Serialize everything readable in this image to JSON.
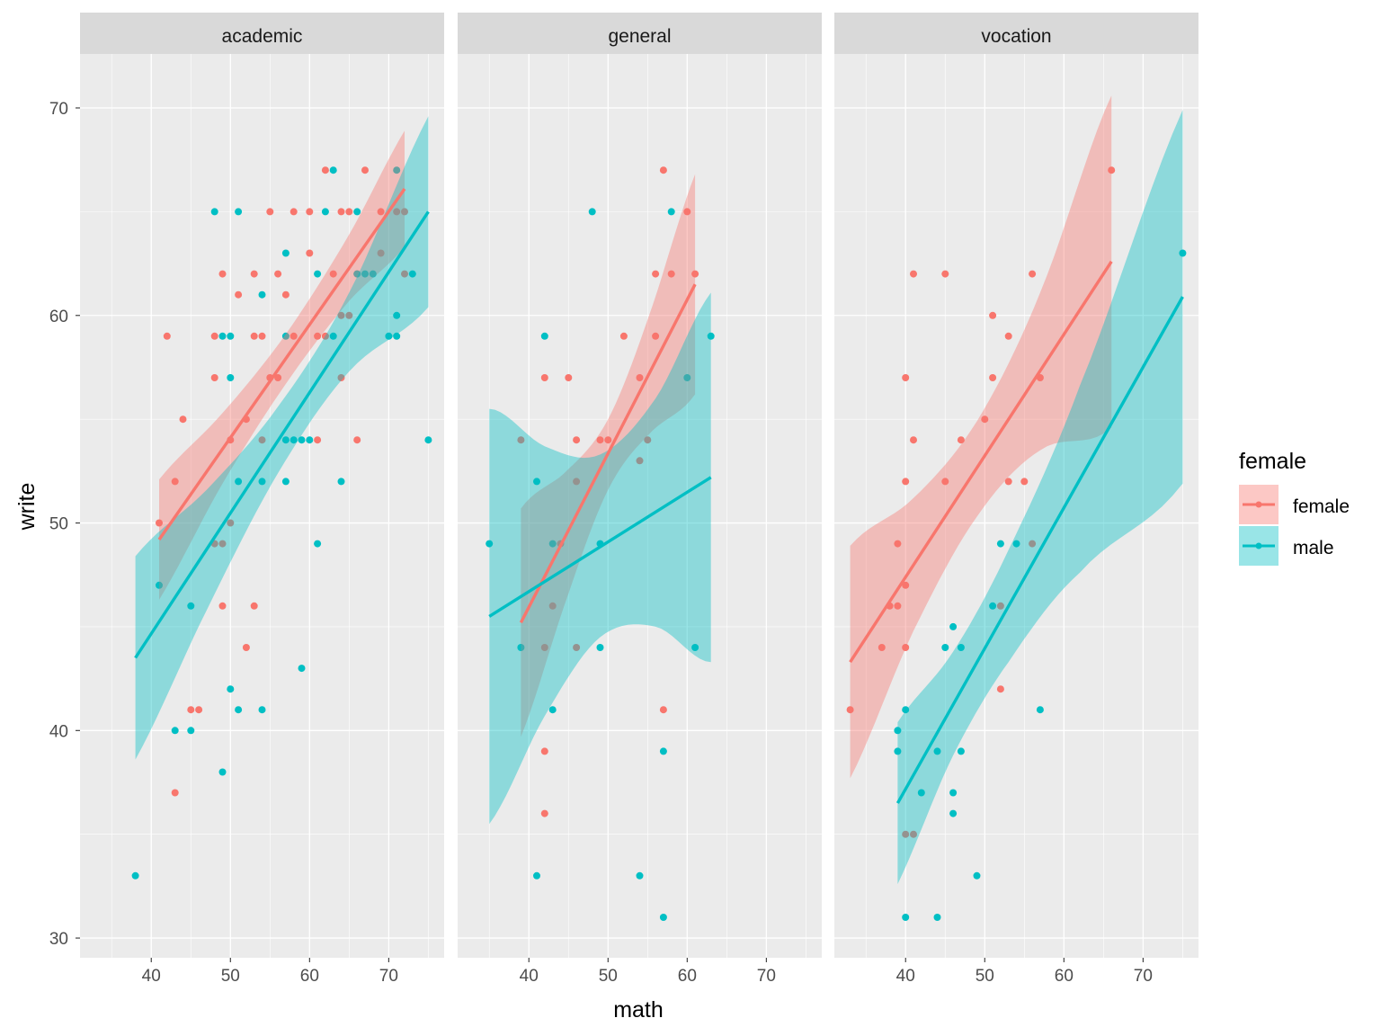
{
  "chart_data": {
    "type": "scatter",
    "facets": [
      "academic",
      "general",
      "vocation"
    ],
    "xlabel": "math",
    "ylabel": "write",
    "xlim": [
      31.0,
      77.0
    ],
    "ylim": [
      29.05,
      72.6
    ],
    "x_ticks": [
      40,
      50,
      60,
      70
    ],
    "y_ticks": [
      30,
      40,
      50,
      60,
      70
    ],
    "grid": true,
    "legend": {
      "title": "female",
      "position": "right",
      "entries": [
        "female",
        "male"
      ]
    },
    "colors": {
      "female": "#F8766D",
      "male": "#00BFC4"
    },
    "panels": [
      {
        "name": "academic",
        "points": {
          "female": [
            [
              41,
              50
            ],
            [
              42,
              59
            ],
            [
              43,
              52
            ],
            [
              44,
              55
            ],
            [
              43,
              37
            ],
            [
              45,
              41
            ],
            [
              46,
              41
            ],
            [
              48,
              57
            ],
            [
              48,
              59
            ],
            [
              49,
              62
            ],
            [
              49,
              46
            ],
            [
              48,
              49
            ],
            [
              49,
              49
            ],
            [
              50,
              54
            ],
            [
              50,
              50
            ],
            [
              51,
              61
            ],
            [
              52,
              55
            ],
            [
              52,
              44
            ],
            [
              53,
              62
            ],
            [
              53,
              59
            ],
            [
              54,
              59
            ],
            [
              53,
              46
            ],
            [
              55,
              65
            ],
            [
              56,
              62
            ],
            [
              56,
              57
            ],
            [
              57,
              61
            ],
            [
              58,
              65
            ],
            [
              58,
              59
            ],
            [
              60,
              65
            ],
            [
              60,
              63
            ],
            [
              61,
              54
            ],
            [
              62,
              67
            ],
            [
              61,
              59
            ],
            [
              62,
              59
            ],
            [
              63,
              62
            ],
            [
              64,
              65
            ],
            [
              65,
              65
            ],
            [
              64,
              60
            ],
            [
              65,
              60
            ],
            [
              66,
              54
            ],
            [
              67,
              67
            ],
            [
              69,
              65
            ],
            [
              71,
              65
            ],
            [
              72,
              65
            ],
            [
              72,
              62
            ],
            [
              55,
              57
            ],
            [
              54,
              54
            ],
            [
              64,
              57
            ],
            [
              69,
              63
            ],
            [
              66,
              62
            ]
          ],
          "male": [
            [
              38,
              33
            ],
            [
              41,
              47
            ],
            [
              43,
              40
            ],
            [
              45,
              40
            ],
            [
              45,
              46
            ],
            [
              48,
              65
            ],
            [
              49,
              59
            ],
            [
              50,
              59
            ],
            [
              49,
              38
            ],
            [
              50,
              57
            ],
            [
              50,
              42
            ],
            [
              51,
              65
            ],
            [
              51,
              52
            ],
            [
              51,
              41
            ],
            [
              54,
              61
            ],
            [
              54,
              41
            ],
            [
              54,
              52
            ],
            [
              57,
              63
            ],
            [
              57,
              59
            ],
            [
              57,
              52
            ],
            [
              57,
              54
            ],
            [
              58,
              54
            ],
            [
              59,
              54
            ],
            [
              60,
              54
            ],
            [
              59,
              43
            ],
            [
              61,
              62
            ],
            [
              61,
              49
            ],
            [
              62,
              65
            ],
            [
              63,
              67
            ],
            [
              63,
              59
            ],
            [
              64,
              52
            ],
            [
              66,
              65
            ],
            [
              66,
              62
            ],
            [
              67,
              62
            ],
            [
              68,
              62
            ],
            [
              70,
              59
            ],
            [
              71,
              59
            ],
            [
              71,
              60
            ],
            [
              71,
              67
            ],
            [
              73,
              62
            ],
            [
              75,
              54
            ]
          ]
        },
        "smooth": {
          "female": [
            [
              41,
              49.2,
              2.9
            ],
            [
              49,
              53.6,
              1.7
            ],
            [
              57,
              57.9,
              1.2
            ],
            [
              65,
              62.3,
              1.6
            ],
            [
              72,
              66.1,
              2.8
            ]
          ],
          "male": [
            [
              38,
              43.5,
              4.9
            ],
            [
              47,
              48.7,
              2.9
            ],
            [
              56,
              54.0,
              1.6
            ],
            [
              65,
              59.2,
              1.9
            ],
            [
              75,
              65.0,
              4.6
            ]
          ]
        }
      },
      {
        "name": "general",
        "points": {
          "female": [
            [
              42,
              57
            ],
            [
              45,
              57
            ],
            [
              42,
              39
            ],
            [
              42,
              36
            ],
            [
              46,
              54
            ],
            [
              49,
              54
            ],
            [
              50,
              54
            ],
            [
              52,
              59
            ],
            [
              56,
              62
            ],
            [
              57,
              67
            ],
            [
              58,
              62
            ],
            [
              60,
              65
            ],
            [
              61,
              62
            ],
            [
              57,
              41
            ],
            [
              39,
              54
            ],
            [
              46,
              52
            ],
            [
              43,
              46
            ],
            [
              44,
              49
            ],
            [
              42,
              44
            ],
            [
              46,
              44
            ],
            [
              54,
              53
            ],
            [
              54,
              57
            ],
            [
              55,
              54
            ],
            [
              56,
              59
            ]
          ],
          "male": [
            [
              35,
              49
            ],
            [
              39,
              44
            ],
            [
              41,
              52
            ],
            [
              42,
              59
            ],
            [
              43,
              41
            ],
            [
              43,
              49
            ],
            [
              48,
              65
            ],
            [
              49,
              49
            ],
            [
              49,
              44
            ],
            [
              41,
              33
            ],
            [
              54,
              33
            ],
            [
              57,
              31
            ],
            [
              57,
              39
            ],
            [
              58,
              65
            ],
            [
              60,
              57
            ],
            [
              61,
              44
            ],
            [
              63,
              59
            ]
          ]
        },
        "smooth": {
          "female": [
            [
              39,
              45.2,
              5.5
            ],
            [
              45,
              49.6,
              3.0
            ],
            [
              50,
              53.3,
              1.7
            ],
            [
              55,
              57.0,
              2.8
            ],
            [
              61,
              61.5,
              5.3
            ]
          ],
          "male": [
            [
              35,
              45.5,
              10.0
            ],
            [
              42,
              47.2,
              6.5
            ],
            [
              49,
              48.9,
              4.4
            ],
            [
              56,
              50.5,
              5.5
            ],
            [
              63,
              52.2,
              8.9
            ]
          ]
        }
      },
      {
        "name": "vocation",
        "points": {
          "female": [
            [
              33,
              41
            ],
            [
              37,
              44
            ],
            [
              38,
              46
            ],
            [
              39,
              46
            ],
            [
              40,
              47
            ],
            [
              40,
              52
            ],
            [
              40,
              57
            ],
            [
              40,
              44
            ],
            [
              41,
              62
            ],
            [
              41,
              54
            ],
            [
              45,
              62
            ],
            [
              45,
              52
            ],
            [
              47,
              54
            ],
            [
              50,
              55
            ],
            [
              51,
              60
            ],
            [
              51,
              57
            ],
            [
              53,
              59
            ],
            [
              53,
              52
            ],
            [
              55,
              52
            ],
            [
              56,
              62
            ],
            [
              52,
              42
            ],
            [
              66,
              67
            ],
            [
              40,
              35
            ],
            [
              41,
              35
            ],
            [
              52,
              46
            ],
            [
              56,
              49
            ],
            [
              57,
              57
            ],
            [
              39,
              49
            ]
          ],
          "male": [
            [
              39,
              40
            ],
            [
              39,
              39
            ],
            [
              40,
              41
            ],
            [
              40,
              31
            ],
            [
              42,
              37
            ],
            [
              44,
              39
            ],
            [
              44,
              31
            ],
            [
              45,
              44
            ],
            [
              46,
              45
            ],
            [
              46,
              37
            ],
            [
              46,
              36
            ],
            [
              47,
              44
            ],
            [
              47,
              39
            ],
            [
              49,
              33
            ],
            [
              51,
              46
            ],
            [
              52,
              49
            ],
            [
              54,
              49
            ],
            [
              57,
              41
            ],
            [
              75,
              63
            ]
          ]
        },
        "smooth": {
          "female": [
            [
              33,
              43.3,
              5.6
            ],
            [
              41,
              48.0,
              3.2
            ],
            [
              49,
              52.6,
              2.3
            ],
            [
              57,
              57.3,
              3.8
            ],
            [
              66,
              62.6,
              8.0
            ]
          ],
          "male": [
            [
              39,
              36.5,
              3.9
            ],
            [
              46,
              41.3,
              2.5
            ],
            [
              53,
              46.0,
              2.7
            ],
            [
              62,
              52.1,
              4.5
            ],
            [
              75,
              60.9,
              9.0
            ]
          ]
        }
      }
    ]
  }
}
